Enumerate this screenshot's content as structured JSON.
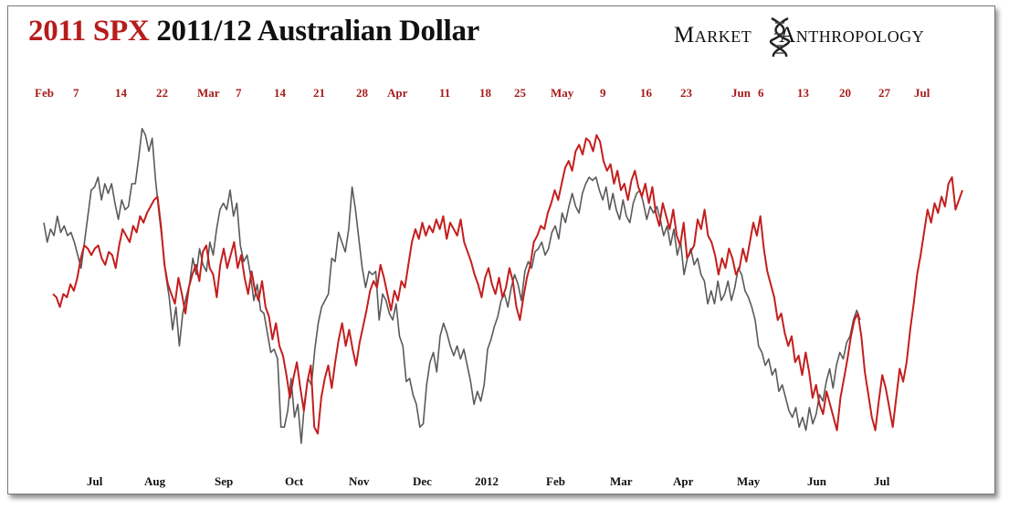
{
  "title": {
    "part1": "2011 SPX",
    "part2": "2011/12 Australian Dollar"
  },
  "logo": {
    "left": "Market",
    "right": "Anthropology",
    "icon": "dna-helix-icon"
  },
  "colors": {
    "spx": "#5a5a5a",
    "aud": "#c41e1e",
    "title_red": "#b71c1c"
  },
  "chart_data": {
    "type": "line",
    "title": "2011 SPX 2011/12 Australian Dollar",
    "top_axis": {
      "label_color": "#a61b1b",
      "ticks": [
        "Feb",
        "7",
        "14",
        "22",
        "Mar",
        "7",
        "14",
        "21",
        "28",
        "Apr",
        "11",
        "18",
        "25",
        "May",
        "9",
        "16",
        "23",
        "Jun",
        "6",
        "13",
        "20",
        "27",
        "Jul"
      ]
    },
    "bottom_axis": {
      "label_color": "#111111",
      "ticks": [
        "Jul",
        "Aug",
        "Sep",
        "Oct",
        "Nov",
        "Dec",
        "2012",
        "Feb",
        "Mar",
        "Apr",
        "May",
        "Jun",
        "Jul"
      ]
    },
    "grid": false,
    "legend": "none",
    "y_normalized": [
      0,
      1
    ],
    "series": [
      {
        "color": "#5a5a5a",
        "y": [
          0.68,
          0.62,
          0.66,
          0.64,
          0.7,
          0.65,
          0.67,
          0.64,
          0.65,
          0.62,
          0.58,
          0.54,
          0.62,
          0.7,
          0.78,
          0.79,
          0.82,
          0.75,
          0.8,
          0.77,
          0.8,
          0.74,
          0.69,
          0.75,
          0.72,
          0.73,
          0.8,
          0.8,
          0.88,
          0.97,
          0.95,
          0.9,
          0.94,
          0.81,
          0.71,
          0.62,
          0.52,
          0.45,
          0.35,
          0.42,
          0.3,
          0.4,
          0.45,
          0.49,
          0.57,
          0.52,
          0.6,
          0.55,
          0.53,
          0.62,
          0.58,
          0.66,
          0.72,
          0.74,
          0.72,
          0.78,
          0.7,
          0.74,
          0.61,
          0.56,
          0.58,
          0.52,
          0.44,
          0.49,
          0.41,
          0.4,
          0.34,
          0.28,
          0.29,
          0.26,
          0.05,
          0.05,
          0.1,
          0.2,
          0.08,
          0.12,
          0.0,
          0.13,
          0.2,
          0.18,
          0.29,
          0.37,
          0.42,
          0.44,
          0.46,
          0.57,
          0.56,
          0.65,
          0.62,
          0.59,
          0.66,
          0.79,
          0.72,
          0.63,
          0.54,
          0.48,
          0.53,
          0.52,
          0.53,
          0.38,
          0.46,
          0.44,
          0.4,
          0.38,
          0.43,
          0.33,
          0.3,
          0.19,
          0.2,
          0.15,
          0.12,
          0.05,
          0.06,
          0.18,
          0.25,
          0.28,
          0.22,
          0.33,
          0.37,
          0.34,
          0.3,
          0.27,
          0.3,
          0.26,
          0.29,
          0.24,
          0.19,
          0.12,
          0.16,
          0.13,
          0.18,
          0.29,
          0.32,
          0.36,
          0.39,
          0.44,
          0.46,
          0.42,
          0.48,
          0.52,
          0.49,
          0.44,
          0.53,
          0.56,
          0.54,
          0.59,
          0.6,
          0.62,
          0.58,
          0.6,
          0.65,
          0.67,
          0.63,
          0.71,
          0.68,
          0.73,
          0.77,
          0.73,
          0.71,
          0.77,
          0.8,
          0.82,
          0.81,
          0.82,
          0.78,
          0.75,
          0.79,
          0.72,
          0.77,
          0.72,
          0.69,
          0.75,
          0.7,
          0.68,
          0.74,
          0.77,
          0.78,
          0.74,
          0.69,
          0.73,
          0.71,
          0.73,
          0.69,
          0.64,
          0.67,
          0.61,
          0.66,
          0.58,
          0.62,
          0.52,
          0.57,
          0.6,
          0.55,
          0.57,
          0.52,
          0.5,
          0.43,
          0.47,
          0.43,
          0.5,
          0.44,
          0.46,
          0.5,
          0.44,
          0.48,
          0.54,
          0.52,
          0.47,
          0.45,
          0.42,
          0.38,
          0.3,
          0.28,
          0.24,
          0.26,
          0.21,
          0.23,
          0.16,
          0.18,
          0.14,
          0.1,
          0.08,
          0.11,
          0.05,
          0.08,
          0.04,
          0.11,
          0.06,
          0.09,
          0.15,
          0.13,
          0.19,
          0.23,
          0.17,
          0.24,
          0.28,
          0.26,
          0.31,
          0.33,
          0.38,
          0.41,
          0.38
        ]
      },
      {
        "color": "#c41e1e",
        "y": [
          0.46,
          0.45,
          0.42,
          0.46,
          0.45,
          0.49,
          0.47,
          0.51,
          0.57,
          0.61,
          0.6,
          0.58,
          0.6,
          0.61,
          0.57,
          0.55,
          0.59,
          0.58,
          0.54,
          0.61,
          0.66,
          0.64,
          0.62,
          0.67,
          0.65,
          0.7,
          0.68,
          0.71,
          0.73,
          0.75,
          0.76,
          0.67,
          0.55,
          0.49,
          0.46,
          0.43,
          0.51,
          0.46,
          0.4,
          0.48,
          0.52,
          0.55,
          0.5,
          0.59,
          0.61,
          0.54,
          0.52,
          0.45,
          0.55,
          0.6,
          0.54,
          0.58,
          0.62,
          0.54,
          0.58,
          0.51,
          0.46,
          0.53,
          0.47,
          0.44,
          0.5,
          0.42,
          0.39,
          0.32,
          0.37,
          0.3,
          0.27,
          0.21,
          0.14,
          0.2,
          0.25,
          0.17,
          0.1,
          0.19,
          0.24,
          0.05,
          0.03,
          0.14,
          0.2,
          0.24,
          0.17,
          0.25,
          0.32,
          0.37,
          0.3,
          0.35,
          0.29,
          0.24,
          0.31,
          0.36,
          0.41,
          0.47,
          0.5,
          0.48,
          0.55,
          0.51,
          0.46,
          0.41,
          0.47,
          0.44,
          0.5,
          0.48,
          0.55,
          0.62,
          0.66,
          0.63,
          0.68,
          0.64,
          0.67,
          0.65,
          0.69,
          0.66,
          0.7,
          0.63,
          0.68,
          0.66,
          0.64,
          0.69,
          0.62,
          0.59,
          0.56,
          0.52,
          0.49,
          0.45,
          0.51,
          0.54,
          0.49,
          0.46,
          0.51,
          0.45,
          0.48,
          0.54,
          0.5,
          0.42,
          0.38,
          0.45,
          0.51,
          0.55,
          0.62,
          0.64,
          0.67,
          0.66,
          0.71,
          0.74,
          0.78,
          0.75,
          0.8,
          0.85,
          0.87,
          0.84,
          0.9,
          0.92,
          0.89,
          0.94,
          0.93,
          0.9,
          0.95,
          0.93,
          0.87,
          0.84,
          0.86,
          0.8,
          0.84,
          0.78,
          0.8,
          0.75,
          0.81,
          0.84,
          0.79,
          0.76,
          0.8,
          0.74,
          0.79,
          0.71,
          0.67,
          0.74,
          0.7,
          0.66,
          0.72,
          0.64,
          0.61,
          0.68,
          0.57,
          0.59,
          0.61,
          0.69,
          0.66,
          0.72,
          0.64,
          0.62,
          0.58,
          0.52,
          0.57,
          0.54,
          0.6,
          0.57,
          0.52,
          0.54,
          0.6,
          0.56,
          0.62,
          0.68,
          0.64,
          0.7,
          0.6,
          0.53,
          0.49,
          0.45,
          0.38,
          0.4,
          0.34,
          0.3,
          0.33,
          0.25,
          0.27,
          0.21,
          0.28,
          0.22,
          0.14,
          0.18,
          0.12,
          0.09,
          0.16,
          0.12,
          0.08,
          0.04,
          0.14,
          0.2,
          0.26,
          0.33,
          0.38,
          0.4,
          0.33,
          0.22,
          0.15,
          0.08,
          0.04,
          0.13,
          0.21,
          0.17,
          0.11,
          0.05,
          0.14,
          0.23,
          0.19,
          0.25,
          0.35,
          0.43,
          0.52,
          0.58,
          0.65,
          0.72,
          0.68,
          0.74,
          0.71,
          0.76,
          0.73,
          0.8,
          0.82,
          0.72,
          0.75,
          0.78
        ]
      }
    ]
  }
}
